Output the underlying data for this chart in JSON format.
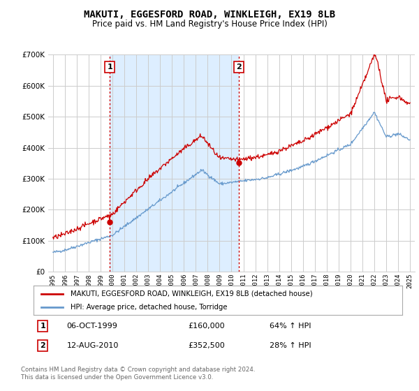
{
  "title": "MAKUTI, EGGESFORD ROAD, WINKLEIGH, EX19 8LB",
  "subtitle": "Price paid vs. HM Land Registry's House Price Index (HPI)",
  "ylim": [
    0,
    700000
  ],
  "yticks": [
    0,
    100000,
    200000,
    300000,
    400000,
    500000,
    600000,
    700000
  ],
  "sale1_year": 1999.77,
  "sale1_price": 160000,
  "sale1_label": "1",
  "sale1_date": "06-OCT-1999",
  "sale1_hpi_pct": "64% ↑ HPI",
  "sale2_year": 2010.62,
  "sale2_price": 352500,
  "sale2_label": "2",
  "sale2_date": "12-AUG-2010",
  "sale2_hpi_pct": "28% ↑ HPI",
  "hpi_line_color": "#6699cc",
  "price_line_color": "#cc0000",
  "vline_color": "#cc0000",
  "shade_color": "#ddeeff",
  "grid_color": "#cccccc",
  "background_color": "#ffffff",
  "legend_label_price": "MAKUTI, EGGESFORD ROAD, WINKLEIGH, EX19 8LB (detached house)",
  "legend_label_hpi": "HPI: Average price, detached house, Torridge",
  "footnote": "Contains HM Land Registry data © Crown copyright and database right 2024.\nThis data is licensed under the Open Government Licence v3.0.",
  "title_fontsize": 10,
  "subtitle_fontsize": 8.5
}
